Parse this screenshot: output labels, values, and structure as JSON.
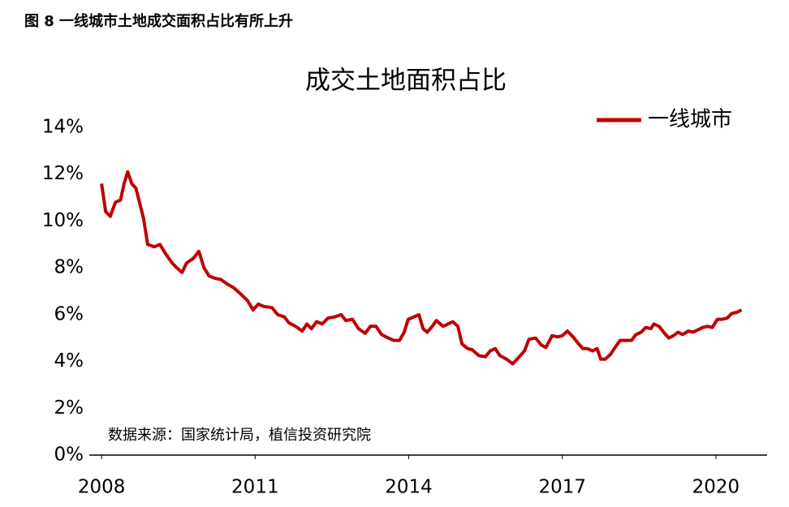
{
  "chart_data": {
    "type": "line",
    "caption": "图 8  一线城市土地成交面积占比有所上升",
    "title": "成交土地面积占比",
    "source": "数据来源：国家统计局，植信投资研究院",
    "legend": "top-right",
    "grid": false,
    "xlim": [
      2007.76,
      2021
    ],
    "xticks": [
      2008,
      2011,
      2014,
      2017,
      2020
    ],
    "ylim": [
      0,
      14
    ],
    "yticks": [
      {
        "value": 0,
        "label": "0%"
      },
      {
        "value": 2,
        "label": "2%"
      },
      {
        "value": 4,
        "label": "4%"
      },
      {
        "value": 6,
        "label": "6%"
      },
      {
        "value": 8,
        "label": "8%"
      },
      {
        "value": 10,
        "label": "10%"
      },
      {
        "value": 12,
        "label": "12%"
      },
      {
        "value": 14,
        "label": "14%"
      }
    ],
    "x": [
      2008.0,
      2008.08,
      2008.17,
      2008.27,
      2008.37,
      2008.44,
      2008.51,
      2008.59,
      2008.67,
      2008.74,
      2008.82,
      2008.9,
      2009.03,
      2009.14,
      2009.25,
      2009.38,
      2009.47,
      2009.57,
      2009.66,
      2009.79,
      2009.9,
      2010.0,
      2010.1,
      2010.22,
      2010.33,
      2010.46,
      2010.58,
      2010.71,
      2010.85,
      2010.96,
      2011.06,
      2011.17,
      2011.33,
      2011.44,
      2011.57,
      2011.66,
      2011.79,
      2011.92,
      2012.01,
      2012.1,
      2012.2,
      2012.31,
      2012.42,
      2012.55,
      2012.68,
      2012.77,
      2012.9,
      2013.02,
      2013.15,
      2013.25,
      2013.36,
      2013.47,
      2013.6,
      2013.71,
      2013.82,
      2013.91,
      2013.99,
      2014.1,
      2014.2,
      2014.28,
      2014.36,
      2014.46,
      2014.54,
      2014.67,
      2014.77,
      2014.86,
      2014.96,
      2015.04,
      2015.15,
      2015.24,
      2015.37,
      2015.5,
      2015.59,
      2015.69,
      2015.78,
      2015.91,
      2016.03,
      2016.16,
      2016.26,
      2016.35,
      2016.48,
      2016.59,
      2016.68,
      2016.8,
      2016.91,
      2017.0,
      2017.1,
      2017.21,
      2017.3,
      2017.4,
      2017.49,
      2017.59,
      2017.68,
      2017.75,
      2017.84,
      2017.94,
      2018.03,
      2018.13,
      2018.22,
      2018.35,
      2018.44,
      2018.54,
      2018.63,
      2018.73,
      2018.79,
      2018.89,
      2018.98,
      2019.08,
      2019.17,
      2019.26,
      2019.35,
      2019.46,
      2019.55,
      2019.65,
      2019.74,
      2019.84,
      2019.93,
      2020.03,
      2020.12,
      2020.22,
      2020.31,
      2020.41,
      2020.5
    ],
    "series": [
      {
        "name": "一线城市",
        "color": "#c00000",
        "values": [
          11.6,
          10.4,
          10.2,
          10.8,
          10.9,
          11.6,
          12.1,
          11.6,
          11.4,
          10.8,
          10.1,
          9.0,
          8.9,
          9.0,
          8.6,
          8.2,
          8.0,
          7.8,
          8.2,
          8.4,
          8.7,
          8.0,
          7.65,
          7.55,
          7.5,
          7.3,
          7.15,
          6.9,
          6.6,
          6.2,
          6.45,
          6.35,
          6.3,
          6.0,
          5.9,
          5.65,
          5.5,
          5.3,
          5.6,
          5.4,
          5.7,
          5.6,
          5.85,
          5.9,
          6.0,
          5.75,
          5.8,
          5.4,
          5.2,
          5.5,
          5.5,
          5.15,
          5.0,
          4.9,
          4.9,
          5.25,
          5.8,
          5.9,
          6.0,
          5.4,
          5.25,
          5.5,
          5.75,
          5.5,
          5.6,
          5.7,
          5.5,
          4.75,
          4.55,
          4.5,
          4.25,
          4.2,
          4.45,
          4.55,
          4.25,
          4.1,
          3.9,
          4.2,
          4.45,
          4.95,
          5.0,
          4.7,
          4.6,
          5.1,
          5.05,
          5.1,
          5.3,
          5.05,
          4.8,
          4.55,
          4.55,
          4.45,
          4.55,
          4.1,
          4.1,
          4.3,
          4.6,
          4.9,
          4.9,
          4.9,
          5.15,
          5.25,
          5.45,
          5.4,
          5.6,
          5.5,
          5.25,
          5.0,
          5.1,
          5.25,
          5.15,
          5.3,
          5.25,
          5.35,
          5.45,
          5.5,
          5.45,
          5.8,
          5.8,
          5.85,
          6.05,
          6.1,
          6.2
        ]
      }
    ]
  }
}
